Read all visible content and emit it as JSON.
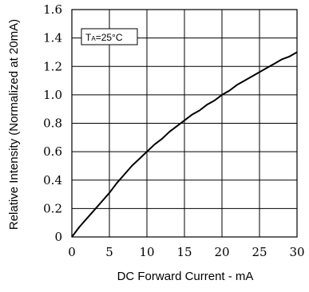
{
  "chart_data": {
    "type": "line",
    "xlabel": "DC Forward Current - mA",
    "ylabel": "Relative Intensity (Normalized at 20mA)",
    "annotation": {
      "prefix": "T",
      "subscript": "A",
      "suffix": "=25°C"
    },
    "xlim": [
      0,
      30
    ],
    "ylim": [
      0,
      1.6
    ],
    "x_ticks": [
      "0",
      "5",
      "10",
      "15",
      "20",
      "25",
      "30"
    ],
    "y_ticks": [
      "0",
      "0.2",
      "0.4",
      "0.6",
      "0.8",
      "1.0",
      "1.2",
      "1.4",
      "1.6"
    ],
    "grid": true,
    "series": [
      {
        "x": [
          0,
          1,
          2,
          3,
          4,
          5,
          6,
          7,
          8,
          9,
          10,
          11,
          12,
          13,
          14,
          15,
          16,
          17,
          18,
          19,
          20,
          21,
          22,
          23,
          24,
          25,
          26,
          27,
          28,
          29,
          30
        ],
        "y": [
          0,
          0.07,
          0.13,
          0.19,
          0.25,
          0.31,
          0.38,
          0.44,
          0.5,
          0.55,
          0.6,
          0.65,
          0.69,
          0.74,
          0.78,
          0.82,
          0.86,
          0.89,
          0.93,
          0.96,
          1.0,
          1.03,
          1.07,
          1.1,
          1.13,
          1.16,
          1.19,
          1.22,
          1.25,
          1.27,
          1.3
        ]
      }
    ],
    "colors": {
      "line": "#000000",
      "grid": "#000000",
      "frame": "#000000"
    }
  }
}
